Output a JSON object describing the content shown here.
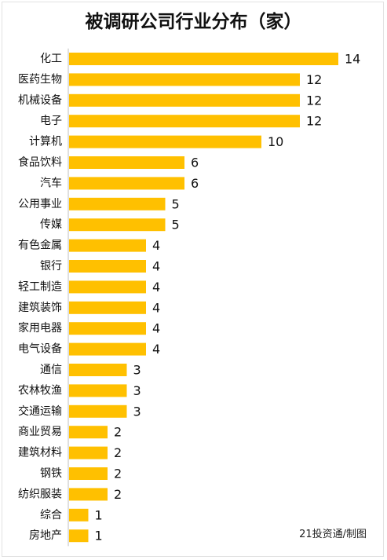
{
  "chart_data": {
    "type": "bar",
    "orientation": "horizontal",
    "title": "被调研公司行业分布（家）",
    "categories": [
      "化工",
      "医药生物",
      "机械设备",
      "电子",
      "计算机",
      "食品饮料",
      "汽车",
      "公用事业",
      "传媒",
      "有色金属",
      "银行",
      "轻工制造",
      "建筑装饰",
      "家用电器",
      "电气设备",
      "通信",
      "农林牧渔",
      "交通运输",
      "商业贸易",
      "建筑材料",
      "钢铁",
      "纺织服装",
      "综合",
      "房地产"
    ],
    "values": [
      14,
      12,
      12,
      12,
      10,
      6,
      6,
      5,
      5,
      4,
      4,
      4,
      4,
      4,
      4,
      3,
      3,
      3,
      2,
      2,
      2,
      2,
      1,
      1
    ],
    "xlim": [
      0,
      14
    ],
    "grid": false,
    "legend": "none",
    "bar_color": "#FFC000"
  },
  "credit": "21投资通/制图"
}
